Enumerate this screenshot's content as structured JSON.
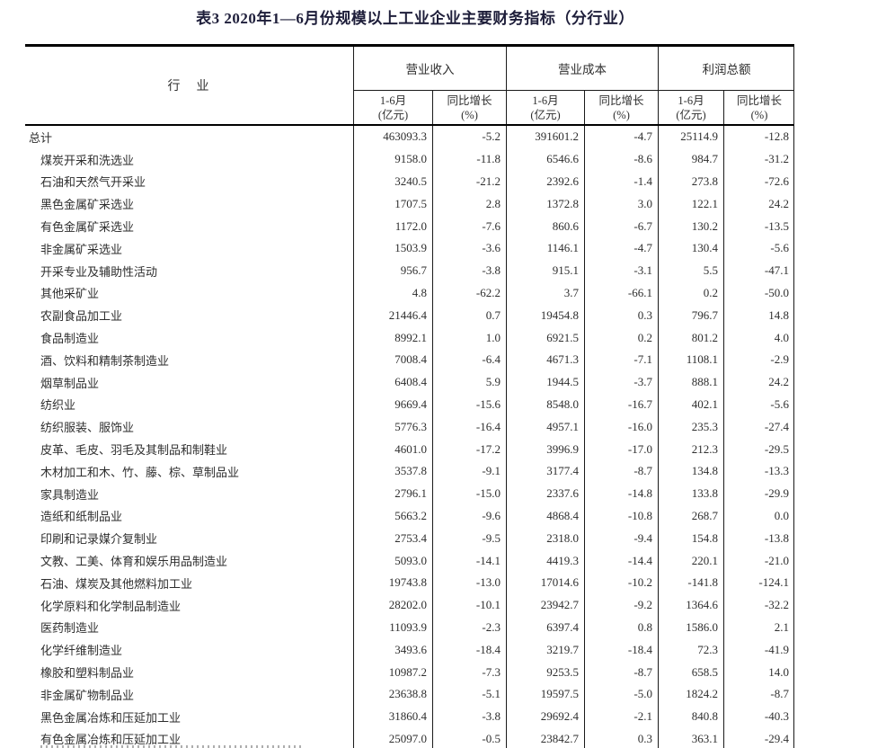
{
  "title": "表3 2020年1—6月份规模以上工业企业主要财务指标（分行业）",
  "table": {
    "industry_header": "行　业",
    "groups": [
      {
        "label": "营业收入"
      },
      {
        "label": "营业成本"
      },
      {
        "label": "利润总额"
      }
    ],
    "sub_headers": {
      "amount_line1": "1-6月",
      "amount_line2": "(亿元)",
      "growth_line1": "同比增长",
      "growth_line2": "(%)"
    },
    "rows": [
      {
        "name": "总计",
        "indent": false,
        "values": [
          "463093.3",
          "-5.2",
          "391601.2",
          "-4.7",
          "25114.9",
          "-12.8"
        ]
      },
      {
        "name": "煤炭开采和洗选业",
        "indent": true,
        "values": [
          "9158.0",
          "-11.8",
          "6546.6",
          "-8.6",
          "984.7",
          "-31.2"
        ]
      },
      {
        "name": "石油和天然气开采业",
        "indent": true,
        "values": [
          "3240.5",
          "-21.2",
          "2392.6",
          "-1.4",
          "273.8",
          "-72.6"
        ]
      },
      {
        "name": "黑色金属矿采选业",
        "indent": true,
        "values": [
          "1707.5",
          "2.8",
          "1372.8",
          "3.0",
          "122.1",
          "24.2"
        ]
      },
      {
        "name": "有色金属矿采选业",
        "indent": true,
        "values": [
          "1172.0",
          "-7.6",
          "860.6",
          "-6.7",
          "130.2",
          "-13.5"
        ]
      },
      {
        "name": "非金属矿采选业",
        "indent": true,
        "values": [
          "1503.9",
          "-3.6",
          "1146.1",
          "-4.7",
          "130.4",
          "-5.6"
        ]
      },
      {
        "name": "开采专业及辅助性活动",
        "indent": true,
        "values": [
          "956.7",
          "-3.8",
          "915.1",
          "-3.1",
          "5.5",
          "-47.1"
        ]
      },
      {
        "name": "其他采矿业",
        "indent": true,
        "values": [
          "4.8",
          "-62.2",
          "3.7",
          "-66.1",
          "0.2",
          "-50.0"
        ]
      },
      {
        "name": "农副食品加工业",
        "indent": true,
        "values": [
          "21446.4",
          "0.7",
          "19454.8",
          "0.3",
          "796.7",
          "14.8"
        ]
      },
      {
        "name": "食品制造业",
        "indent": true,
        "values": [
          "8992.1",
          "1.0",
          "6921.5",
          "0.2",
          "801.2",
          "4.0"
        ]
      },
      {
        "name": "酒、饮料和精制茶制造业",
        "indent": true,
        "values": [
          "7008.4",
          "-6.4",
          "4671.3",
          "-7.1",
          "1108.1",
          "-2.9"
        ]
      },
      {
        "name": "烟草制品业",
        "indent": true,
        "values": [
          "6408.4",
          "5.9",
          "1944.5",
          "-3.7",
          "888.1",
          "24.2"
        ]
      },
      {
        "name": "纺织业",
        "indent": true,
        "values": [
          "9669.4",
          "-15.6",
          "8548.0",
          "-16.7",
          "402.1",
          "-5.6"
        ]
      },
      {
        "name": "纺织服装、服饰业",
        "indent": true,
        "values": [
          "5776.3",
          "-16.4",
          "4957.1",
          "-16.0",
          "235.3",
          "-27.4"
        ]
      },
      {
        "name": "皮革、毛皮、羽毛及其制品和制鞋业",
        "indent": true,
        "values": [
          "4601.0",
          "-17.2",
          "3996.9",
          "-17.0",
          "212.3",
          "-29.5"
        ]
      },
      {
        "name": "木材加工和木、竹、藤、棕、草制品业",
        "indent": true,
        "values": [
          "3537.8",
          "-9.1",
          "3177.4",
          "-8.7",
          "134.8",
          "-13.3"
        ]
      },
      {
        "name": "家具制造业",
        "indent": true,
        "values": [
          "2796.1",
          "-15.0",
          "2337.6",
          "-14.8",
          "133.8",
          "-29.9"
        ]
      },
      {
        "name": "造纸和纸制品业",
        "indent": true,
        "values": [
          "5663.2",
          "-9.6",
          "4868.4",
          "-10.8",
          "268.7",
          "0.0"
        ]
      },
      {
        "name": "印刷和记录媒介复制业",
        "indent": true,
        "values": [
          "2753.4",
          "-9.5",
          "2318.0",
          "-9.4",
          "154.8",
          "-13.8"
        ]
      },
      {
        "name": "文教、工美、体育和娱乐用品制造业",
        "indent": true,
        "values": [
          "5093.0",
          "-14.1",
          "4419.3",
          "-14.4",
          "220.1",
          "-21.0"
        ]
      },
      {
        "name": "石油、煤炭及其他燃料加工业",
        "indent": true,
        "values": [
          "19743.8",
          "-13.0",
          "17014.6",
          "-10.2",
          "-141.8",
          "-124.1"
        ]
      },
      {
        "name": "化学原料和化学制品制造业",
        "indent": true,
        "values": [
          "28202.0",
          "-10.1",
          "23942.7",
          "-9.2",
          "1364.6",
          "-32.2"
        ]
      },
      {
        "name": "医药制造业",
        "indent": true,
        "values": [
          "11093.9",
          "-2.3",
          "6397.4",
          "0.8",
          "1586.0",
          "2.1"
        ]
      },
      {
        "name": "化学纤维制造业",
        "indent": true,
        "values": [
          "3493.6",
          "-18.4",
          "3219.7",
          "-18.4",
          "72.3",
          "-41.9"
        ]
      },
      {
        "name": "橡胶和塑料制品业",
        "indent": true,
        "values": [
          "10987.2",
          "-7.3",
          "9253.5",
          "-8.7",
          "658.5",
          "14.0"
        ]
      },
      {
        "name": "非金属矿物制品业",
        "indent": true,
        "values": [
          "23638.8",
          "-5.1",
          "19597.5",
          "-5.0",
          "1824.2",
          "-8.7"
        ]
      },
      {
        "name": "黑色金属冶炼和压延加工业",
        "indent": true,
        "values": [
          "31860.4",
          "-3.8",
          "29692.4",
          "-2.1",
          "840.8",
          "-40.3"
        ]
      },
      {
        "name": "有色金属冶炼和压延加工业",
        "indent": true,
        "values": [
          "25097.0",
          "-0.5",
          "23842.7",
          "0.3",
          "363.1",
          "-29.4"
        ]
      }
    ]
  }
}
